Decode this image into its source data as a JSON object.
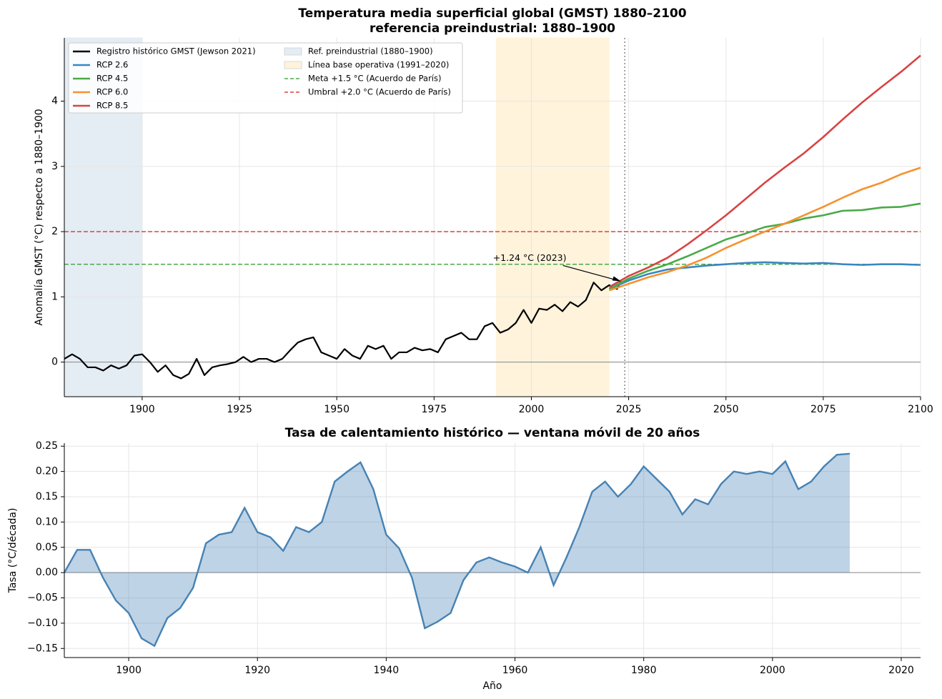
{
  "chart_data": [
    {
      "type": "line",
      "title": "Temperatura media superficial global (GMST) 1880–2100",
      "subtitle": "referencia preindustrial: 1880–1900",
      "y_label": "Anomalía GMST (°C) respecto a 1880–1900",
      "xlim": [
        1880,
        2100
      ],
      "ylim": [
        -0.53,
        4.97
      ],
      "xticks": [
        1900,
        1925,
        1950,
        1975,
        2000,
        2025,
        2050,
        2075,
        2100
      ],
      "yticks": [
        0,
        1,
        2,
        3,
        4
      ],
      "grid": true,
      "legend": "upper left",
      "series": [
        {
          "name": "Registro histórico GMST (Jewson 2021)",
          "color": "#000000",
          "x": [
            1880,
            1882,
            1884,
            1886,
            1888,
            1890,
            1892,
            1894,
            1896,
            1898,
            1900,
            1902,
            1904,
            1906,
            1908,
            1910,
            1912,
            1914,
            1916,
            1918,
            1920,
            1922,
            1924,
            1926,
            1928,
            1930,
            1932,
            1934,
            1936,
            1938,
            1940,
            1942,
            1944,
            1946,
            1948,
            1950,
            1952,
            1954,
            1956,
            1958,
            1960,
            1962,
            1964,
            1966,
            1968,
            1970,
            1972,
            1974,
            1976,
            1978,
            1980,
            1982,
            1984,
            1986,
            1988,
            1990,
            1992,
            1994,
            1996,
            1998,
            2000,
            2002,
            2004,
            2006,
            2008,
            2010,
            2012,
            2014,
            2016,
            2018,
            2020,
            2022,
            2023
          ],
          "values": [
            0.05,
            0.12,
            0.05,
            -0.08,
            -0.08,
            -0.13,
            -0.05,
            -0.1,
            -0.05,
            0.1,
            0.12,
            0.0,
            -0.15,
            -0.05,
            -0.2,
            -0.25,
            -0.18,
            0.05,
            -0.2,
            -0.08,
            -0.05,
            -0.03,
            0.0,
            0.08,
            0.0,
            0.05,
            0.05,
            0.0,
            0.05,
            0.18,
            0.3,
            0.35,
            0.38,
            0.15,
            0.1,
            0.05,
            0.2,
            0.1,
            0.05,
            0.25,
            0.2,
            0.25,
            0.05,
            0.15,
            0.15,
            0.22,
            0.18,
            0.2,
            0.15,
            0.35,
            0.4,
            0.45,
            0.35,
            0.35,
            0.55,
            0.6,
            0.45,
            0.5,
            0.6,
            0.8,
            0.6,
            0.82,
            0.8,
            0.88,
            0.78,
            0.92,
            0.85,
            0.95,
            1.22,
            1.1,
            1.18,
            1.12,
            1.24
          ]
        },
        {
          "name": "RCP 2.6",
          "color": "#3a87c0",
          "x": [
            2020,
            2025,
            2030,
            2035,
            2040,
            2045,
            2050,
            2055,
            2060,
            2065,
            2070,
            2075,
            2080,
            2085,
            2090,
            2095,
            2100
          ],
          "values": [
            1.12,
            1.25,
            1.35,
            1.42,
            1.45,
            1.48,
            1.5,
            1.52,
            1.53,
            1.52,
            1.51,
            1.52,
            1.5,
            1.49,
            1.5,
            1.5,
            1.49
          ]
        },
        {
          "name": "RCP 4.5",
          "color": "#4aaa48",
          "x": [
            2020,
            2025,
            2030,
            2035,
            2040,
            2045,
            2050,
            2055,
            2060,
            2065,
            2070,
            2075,
            2080,
            2085,
            2090,
            2095,
            2100
          ],
          "values": [
            1.12,
            1.28,
            1.4,
            1.5,
            1.62,
            1.75,
            1.88,
            1.97,
            2.07,
            2.12,
            2.2,
            2.25,
            2.32,
            2.33,
            2.37,
            2.38,
            2.43
          ]
        },
        {
          "name": "RCP 6.0",
          "color": "#f5922f",
          "x": [
            2020,
            2025,
            2030,
            2035,
            2040,
            2045,
            2050,
            2055,
            2060,
            2065,
            2070,
            2075,
            2080,
            2085,
            2090,
            2095,
            2100
          ],
          "values": [
            1.1,
            1.2,
            1.3,
            1.38,
            1.48,
            1.6,
            1.75,
            1.88,
            2.0,
            2.12,
            2.25,
            2.38,
            2.52,
            2.65,
            2.75,
            2.88,
            2.98
          ]
        },
        {
          "name": "RCP 8.5",
          "color": "#d94343",
          "x": [
            2020,
            2025,
            2030,
            2035,
            2040,
            2045,
            2050,
            2055,
            2060,
            2065,
            2070,
            2075,
            2080,
            2085,
            2090,
            2095,
            2100
          ],
          "values": [
            1.15,
            1.32,
            1.45,
            1.6,
            1.8,
            2.02,
            2.25,
            2.5,
            2.75,
            2.98,
            3.2,
            3.45,
            3.72,
            3.98,
            4.22,
            4.45,
            4.7
          ]
        }
      ],
      "spans": [
        {
          "name": "Ref. preindustrial (1880–1900)",
          "start": 1880,
          "end": 1900,
          "color": "#e4ecf4"
        },
        {
          "name": "Línea base operativa (1991–2020)",
          "start": 1991,
          "end": 2020,
          "color": "#fff3dc"
        }
      ],
      "hlines": [
        {
          "name": "Meta +1.5 °C (Acuerdo de París)",
          "value": 1.5,
          "color": "#4aaa48"
        },
        {
          "name": "Umbral +2.0 °C (Acuerdo de París)",
          "value": 2.0,
          "color": "#d94343"
        }
      ],
      "vline": 2024,
      "annotation": {
        "text": "+1.24 °C (2023)",
        "x": 2023,
        "y": 1.24
      }
    },
    {
      "type": "area",
      "title": "Tasa de calentamiento histórico — ventana móvil de 20 años",
      "x_label": "Año",
      "y_label": "Tasa (°C/década)",
      "xlim": [
        1890,
        2023
      ],
      "ylim": [
        -0.168,
        0.256
      ],
      "xticks": [
        1900,
        1920,
        1940,
        1960,
        1980,
        2000,
        2020
      ],
      "yticks": [
        {
          "value": -0.15,
          "label": "−0.15"
        },
        {
          "value": -0.1,
          "label": "−0.10"
        },
        {
          "value": -0.05,
          "label": "−0.05"
        },
        {
          "value": 0,
          "label": "0.00"
        },
        {
          "value": 0.05,
          "label": "0.05"
        },
        {
          "value": 0.1,
          "label": "0.10"
        },
        {
          "value": 0.15,
          "label": "0.15"
        },
        {
          "value": 0.2,
          "label": "0.20"
        },
        {
          "value": 0.25,
          "label": "0.25"
        }
      ],
      "grid": true,
      "color": "#4682b4",
      "x": [
        1890,
        1892,
        1894,
        1896,
        1898,
        1900,
        1902,
        1904,
        1906,
        1908,
        1910,
        1912,
        1914,
        1916,
        1918,
        1920,
        1922,
        1924,
        1926,
        1928,
        1930,
        1932,
        1934,
        1936,
        1938,
        1940,
        1942,
        1944,
        1946,
        1948,
        1950,
        1952,
        1954,
        1956,
        1958,
        1960,
        1962,
        1964,
        1966,
        1968,
        1970,
        1972,
        1974,
        1976,
        1978,
        1980,
        1982,
        1984,
        1986,
        1988,
        1990,
        1992,
        1994,
        1996,
        1998,
        2000,
        2002,
        2004,
        2006,
        2008,
        2010,
        2012
      ],
      "values": [
        0.0,
        0.045,
        0.045,
        -0.01,
        -0.055,
        -0.08,
        -0.13,
        -0.145,
        -0.09,
        -0.07,
        -0.03,
        0.058,
        0.075,
        0.08,
        0.128,
        0.08,
        0.07,
        0.043,
        0.09,
        0.08,
        0.1,
        0.18,
        0.2,
        0.218,
        0.165,
        0.075,
        0.048,
        -0.01,
        -0.11,
        -0.097,
        -0.08,
        -0.015,
        0.02,
        0.03,
        0.02,
        0.012,
        0.0,
        0.05,
        -0.025,
        0.03,
        0.09,
        0.16,
        0.18,
        0.15,
        0.175,
        0.21,
        0.185,
        0.16,
        0.115,
        0.145,
        0.135,
        0.175,
        0.2,
        0.195,
        0.2,
        0.195,
        0.22,
        0.165,
        0.18,
        0.21,
        0.233,
        0.235
      ]
    }
  ]
}
